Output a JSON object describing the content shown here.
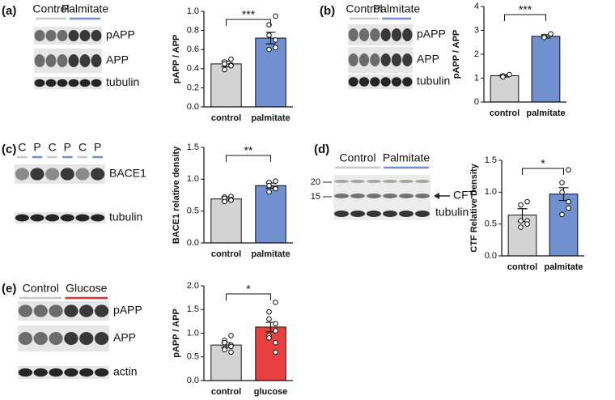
{
  "chart_data": [
    {
      "type": "bar",
      "panel": "(a)",
      "ylabel": "pAPP / APP",
      "categories": [
        "control",
        "palmitate"
      ],
      "colors": [
        "#d3d3d3",
        "#7090d0"
      ],
      "values": [
        0.45,
        0.72
      ],
      "errors": [
        0.03,
        0.06
      ],
      "points": [
        [
          0.5,
          0.47,
          0.45,
          0.44,
          0.43,
          0.39
        ],
        [
          0.95,
          0.86,
          0.75,
          0.7,
          0.62,
          0.6
        ]
      ],
      "annotation": "***",
      "ylim": [
        0,
        1.0
      ],
      "yticks": [
        {
          "value": 0,
          "label": "0.0"
        },
        {
          "value": 0.2,
          "label": "0.2"
        },
        {
          "value": 0.4,
          "label": "0.4"
        },
        {
          "value": 0.6,
          "label": "0.6"
        },
        {
          "value": 0.8,
          "label": "0.8"
        },
        {
          "value": 1.0,
          "label": "1.0"
        }
      ]
    },
    {
      "type": "bar",
      "panel": "(b)",
      "ylabel": "pAPP / APP",
      "categories": [
        "control",
        "palmitate"
      ],
      "colors": [
        "#d3d3d3",
        "#7090d0"
      ],
      "values": [
        1.1,
        2.75
      ],
      "errors": [
        0.05,
        0.07
      ],
      "points": [
        [
          1.15,
          1.1,
          1.05
        ],
        [
          2.85,
          2.75,
          2.7
        ]
      ],
      "annotation": "***",
      "ylim": [
        0,
        4
      ],
      "yticks": [
        0,
        1,
        2,
        3,
        4
      ]
    },
    {
      "type": "bar",
      "panel": "(c)",
      "ylabel": "BACE1 relative density",
      "categories": [
        "control",
        "palmitate"
      ],
      "colors": [
        "#d3d3d3",
        "#7090d0"
      ],
      "values": [
        0.69,
        0.9
      ],
      "errors": [
        0.03,
        0.04
      ],
      "points": [
        [
          0.73,
          0.72,
          0.7,
          0.68,
          0.67,
          0.65
        ],
        [
          0.97,
          0.95,
          0.9,
          0.87,
          0.85,
          0.8
        ]
      ],
      "annotation": "**",
      "ylim": [
        0,
        1.5
      ],
      "yticks": [
        {
          "value": 0,
          "label": "0.0"
        },
        {
          "value": 0.5,
          "label": "0.5"
        },
        {
          "value": 1.0,
          "label": "1.0"
        },
        {
          "value": 1.5,
          "label": "1.5"
        }
      ]
    },
    {
      "type": "bar",
      "panel": "(d)",
      "ylabel": "CTF Relative Density",
      "categories": [
        "control",
        "palmitate"
      ],
      "colors": [
        "#d3d3d3",
        "#7090d0"
      ],
      "values": [
        0.64,
        0.97
      ],
      "errors": [
        0.1,
        0.1
      ],
      "points": [
        [
          0.85,
          0.8,
          0.55,
          0.55,
          0.5,
          0.45
        ],
        [
          1.35,
          1.15,
          1.0,
          0.85,
          0.75,
          0.65
        ]
      ],
      "annotation": "*",
      "ylim": [
        0,
        1.5
      ],
      "yticks": [
        {
          "value": 0,
          "label": "0.0"
        },
        {
          "value": 0.5,
          "label": "0.5"
        },
        {
          "value": 1.0,
          "label": "1.0"
        },
        {
          "value": 1.5,
          "label": "1.5"
        }
      ]
    },
    {
      "type": "bar",
      "panel": "(e)",
      "ylabel": "pAPP / APP",
      "categories": [
        "control",
        "glucose"
      ],
      "colors": [
        "#d3d3d3",
        "#e8403f"
      ],
      "values": [
        0.75,
        1.13
      ],
      "errors": [
        0.05,
        0.1
      ],
      "points": [
        [
          0.95,
          0.85,
          0.8,
          0.75,
          0.72,
          0.68,
          0.65,
          0.6
        ],
        [
          1.65,
          1.45,
          1.3,
          1.2,
          1.05,
          0.95,
          0.9,
          0.8,
          0.6
        ]
      ],
      "annotation": "*",
      "ylim": [
        0,
        2.0
      ],
      "yticks": [
        {
          "value": 0,
          "label": "0.0"
        },
        {
          "value": 0.5,
          "label": "0.5"
        },
        {
          "value": 1.0,
          "label": "1.0"
        },
        {
          "value": 1.5,
          "label": "1.5"
        },
        {
          "value": 2.0,
          "label": "2.0"
        }
      ]
    }
  ],
  "blots": [
    {
      "groups": [
        "Control",
        "Palmitate"
      ],
      "group_colors": [
        "#c8c8c8",
        "#7090d0"
      ],
      "bands": [
        "pAPP",
        "APP",
        "tubulin"
      ]
    },
    {
      "groups": [
        "Control",
        "Palmitate"
      ],
      "group_colors": [
        "#c8c8c8",
        "#7090d0"
      ],
      "bands": [
        "pAPP",
        "APP",
        "tubulin"
      ]
    },
    {
      "lanes": [
        "C",
        "P",
        "C",
        "P",
        "C",
        "P"
      ],
      "group_colors": [
        "#c8c8c8",
        "#7090d0"
      ],
      "bands": [
        "BACE1",
        "tubulin"
      ]
    },
    {
      "groups": [
        "Control",
        "Palmitate"
      ],
      "group_colors": [
        "#c8c8c8",
        "#7090d0"
      ],
      "markers": [
        "20",
        "15"
      ],
      "bands": [
        "CFT",
        "tubulin"
      ]
    },
    {
      "groups": [
        "Control",
        "Glucose"
      ],
      "group_colors": [
        "#c8c8c8",
        "#e03030"
      ],
      "bands": [
        "pAPP",
        "APP",
        "actin"
      ]
    }
  ]
}
